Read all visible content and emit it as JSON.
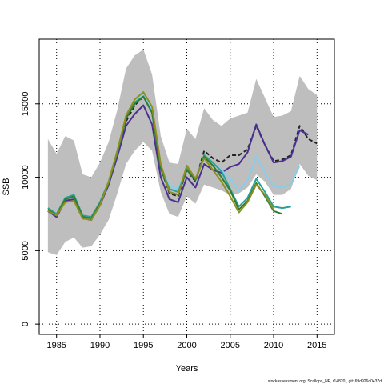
{
  "chart_data": {
    "type": "line",
    "title": "",
    "xlabel": "Years",
    "ylabel": "SSB",
    "xlim": [
      1983,
      2017
    ],
    "ylim": [
      -700,
      19400
    ],
    "xticks": [
      1985,
      1990,
      1995,
      2000,
      2005,
      2010,
      2015
    ],
    "yticks": [
      0,
      5000,
      10000,
      15000
    ],
    "grid": "dotted",
    "footnote": "stockassessment.org,  Scallops_NE,  r14820 ,  git:  69d926d0437d",
    "confidence_band": {
      "color": "#bebebe",
      "x": [
        1984,
        1985,
        1986,
        1987,
        1988,
        1989,
        1990,
        1991,
        1992,
        1993,
        1994,
        1995,
        1996,
        1997,
        1998,
        1999,
        2000,
        2001,
        2002,
        2003,
        2004,
        2005,
        2006,
        2007,
        2008,
        2009,
        2010,
        2011,
        2012,
        2013,
        2014,
        2015
      ],
      "upper": [
        12600,
        11600,
        12800,
        12500,
        10200,
        10000,
        11000,
        12400,
        14600,
        17400,
        18300,
        18700,
        17000,
        12800,
        11000,
        10900,
        13300,
        12600,
        14700,
        13900,
        13500,
        14000,
        14200,
        14400,
        16700,
        15400,
        14100,
        14200,
        14500,
        16900,
        16000,
        15600
      ],
      "lower": [
        4900,
        4700,
        5600,
        5900,
        5200,
        5300,
        6100,
        7100,
        8900,
        10900,
        11800,
        12400,
        11800,
        9000,
        7500,
        7300,
        8700,
        8200,
        9500,
        9300,
        9100,
        8800,
        8900,
        9300,
        10200,
        9700,
        8800,
        8800,
        9200,
        10900,
        10100,
        9800
      ]
    },
    "series": [
      {
        "color": "#222222",
        "dash": true,
        "x": [
          1984,
          1985,
          1986,
          1987,
          1988,
          1989,
          1990,
          1991,
          1992,
          1993,
          1994,
          1995,
          1996,
          1997,
          1998,
          1999,
          2000,
          2001,
          2002,
          2003,
          2004,
          2005,
          2006,
          2007,
          2008,
          2009,
          2010,
          2011,
          2012,
          2013,
          2014,
          2015
        ],
        "values": [
          7700,
          7300,
          8400,
          8500,
          7200,
          7100,
          8100,
          9500,
          11500,
          13800,
          14900,
          15500,
          14500,
          10600,
          8900,
          8700,
          10500,
          9700,
          11800,
          11300,
          11000,
          11500,
          11500,
          11900,
          13500,
          12200,
          11100,
          11200,
          11500,
          13500,
          12600,
          12300
        ]
      },
      {
        "color": "#4b2f91",
        "x": [
          1984,
          1985,
          1986,
          1987,
          1988,
          1989,
          1990,
          1991,
          1992,
          1993,
          1994,
          1995,
          1996,
          1997,
          1998,
          1999,
          2000,
          2001,
          2002,
          2003,
          2004,
          2005,
          2006,
          2007,
          2008,
          2009,
          2010,
          2011,
          2012,
          2013,
          2014
        ],
        "values": [
          7700,
          7300,
          8400,
          8500,
          7200,
          7100,
          8100,
          9500,
          11400,
          13500,
          14300,
          14900,
          13600,
          10000,
          8500,
          8300,
          10000,
          9300,
          10900,
          10500,
          10300,
          10700,
          10900,
          11700,
          13600,
          12200,
          11000,
          11100,
          11400,
          13200,
          12900
        ]
      },
      {
        "color": "#87ceeb",
        "x": [
          1984,
          1985,
          1986,
          1987,
          1988,
          1989,
          1990,
          1991,
          1992,
          1993,
          1994,
          1995,
          1996,
          1997,
          1998,
          1999,
          2000,
          2001,
          2002,
          2003,
          2004,
          2005,
          2006,
          2007,
          2008,
          2009,
          2010,
          2011,
          2012,
          2013
        ],
        "values": [
          7800,
          7400,
          8600,
          8700,
          7300,
          7200,
          8200,
          9700,
          11700,
          14000,
          15200,
          15600,
          14600,
          10800,
          9400,
          9200,
          10600,
          9800,
          11400,
          10900,
          10500,
          9900,
          9100,
          9800,
          11400,
          10300,
          9400,
          9300,
          9500,
          10800
        ]
      },
      {
        "color": "#2aa198",
        "x": [
          1984,
          1985,
          1986,
          1987,
          1988,
          1989,
          1990,
          1991,
          1992,
          1993,
          1994,
          1995,
          1996,
          1997,
          1998,
          1999,
          2000,
          2001,
          2002,
          2003,
          2004,
          2005,
          2006,
          2007,
          2008,
          2009,
          2010,
          2011,
          2012
        ],
        "values": [
          7900,
          7500,
          8600,
          8800,
          7400,
          7300,
          8300,
          9700,
          11800,
          14000,
          15100,
          15500,
          14400,
          10700,
          9200,
          9000,
          10600,
          9800,
          11500,
          11000,
          10400,
          9200,
          8000,
          8600,
          9900,
          9000,
          8000,
          7900,
          8000
        ]
      },
      {
        "color": "#2e7d32",
        "x": [
          1984,
          1985,
          1986,
          1987,
          1988,
          1989,
          1990,
          1991,
          1992,
          1993,
          1994,
          1995,
          1996,
          1997,
          1998,
          1999,
          2000,
          2001,
          2002,
          2003,
          2004,
          2005,
          2006,
          2007,
          2008,
          2009,
          2010,
          2011
        ],
        "values": [
          7800,
          7400,
          8500,
          8700,
          7300,
          7200,
          8200,
          9600,
          11700,
          14000,
          15000,
          15500,
          14400,
          10600,
          9000,
          8800,
          10500,
          9800,
          11400,
          10800,
          10000,
          9100,
          7800,
          8400,
          9600,
          8700,
          7700,
          7500
        ]
      },
      {
        "color": "#8f8f1f",
        "x": [
          1984,
          1985,
          1986,
          1987,
          1988,
          1989,
          1990,
          1991,
          1992,
          1993,
          1994,
          1995,
          1996,
          1997,
          1998,
          1999,
          2000,
          2001,
          2002,
          2003,
          2004,
          2005,
          2006,
          2007,
          2008,
          2009,
          2010
        ],
        "values": [
          7700,
          7400,
          8300,
          8400,
          7200,
          7100,
          8100,
          9700,
          11800,
          14200,
          15300,
          15800,
          14800,
          10900,
          9000,
          8800,
          10800,
          9900,
          11300,
          10500,
          9700,
          8700,
          7600,
          8300,
          9500,
          8800,
          7800
        ]
      }
    ]
  }
}
